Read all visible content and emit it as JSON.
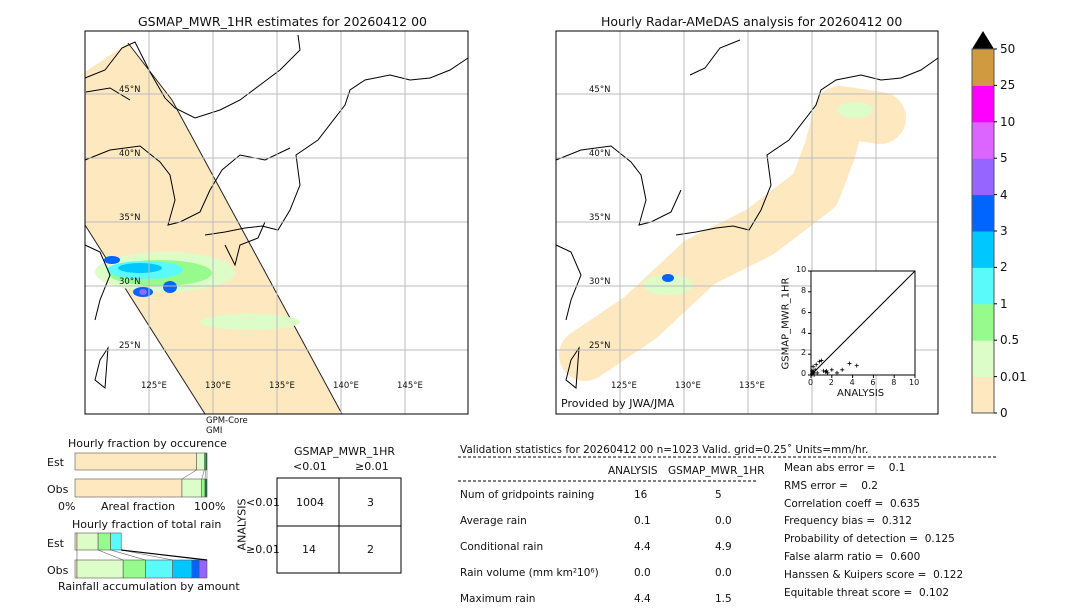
{
  "left_map": {
    "title": "GSMAP_MWR_1HR estimates for 20260412 00",
    "lat_labels": [
      "45°N",
      "40°N",
      "35°N",
      "30°N",
      "25°N"
    ],
    "lon_labels": [
      "125°E",
      "130°E",
      "135°E",
      "140°E",
      "145°E"
    ],
    "sensor_line1": "GPM-Core",
    "sensor_line2": "GMI"
  },
  "right_map": {
    "title": "Hourly Radar-AMeDAS analysis for 20260412 00",
    "lat_labels": [
      "45°N",
      "40°N",
      "35°N",
      "30°N",
      "25°N"
    ],
    "lon_labels": [
      "125°E",
      "130°E",
      "135°E"
    ],
    "credit": "Provided by JWA/JMA"
  },
  "colorbar": {
    "ticks": [
      "0",
      "0.01",
      "0.5",
      "1",
      "2",
      "3",
      "4",
      "5",
      "10",
      "25",
      "50"
    ],
    "colors": [
      "#fee8c0",
      "#dcfdc8",
      "#96fb8c",
      "#5afafa",
      "#00c8ff",
      "#0064ff",
      "#9664ff",
      "#dc64ff",
      "#ff00ff",
      "#d09a40"
    ],
    "extend_color": "#000000"
  },
  "chart_data": [
    {
      "type": "scatter",
      "xlabel": "ANALYSIS",
      "ylabel": "GSMAP_MWR_1HR",
      "xlim": [
        0,
        10
      ],
      "ylim": [
        0,
        10
      ],
      "xticks": [
        "0",
        "2",
        "4",
        "6",
        "8",
        "10"
      ],
      "yticks": [
        "0",
        "2",
        "4",
        "6",
        "8",
        "10"
      ],
      "diagonal": true,
      "points": [
        [
          0.1,
          0.1
        ],
        [
          0.2,
          0.3
        ],
        [
          0.3,
          0.2
        ],
        [
          0.4,
          0.5
        ],
        [
          0.2,
          0.8
        ],
        [
          0.5,
          1.0
        ],
        [
          0.6,
          0.2
        ],
        [
          0.8,
          1.3
        ],
        [
          1.0,
          1.4
        ],
        [
          1.2,
          0.4
        ],
        [
          1.4,
          0.3
        ],
        [
          1.5,
          0.4
        ],
        [
          1.6,
          0.2
        ],
        [
          2.0,
          0.5
        ],
        [
          2.5,
          0.2
        ],
        [
          3.0,
          0.5
        ],
        [
          3.7,
          1.1
        ],
        [
          4.4,
          0.9
        ],
        [
          0.3,
          0.0
        ],
        [
          0.1,
          0.4
        ]
      ]
    },
    {
      "type": "bar",
      "title": "Hourly fraction by occurence",
      "xlabel": "Areal fraction",
      "x_ticks": [
        "0%",
        "100%"
      ],
      "categories": [
        "Est",
        "Obs"
      ],
      "stacked_percent": {
        "Est": [
          {
            "color": "#fee8c0",
            "value": 92.0
          },
          {
            "color": "#dcfdc8",
            "value": 6.0
          },
          {
            "color": "#96fb8c",
            "value": 1.0
          },
          {
            "color": "#1a6a3a",
            "value": 1.0
          }
        ],
        "Obs": [
          {
            "color": "#fee8c0",
            "value": 81.0
          },
          {
            "color": "#dcfdc8",
            "value": 15.0
          },
          {
            "color": "#96fb8c",
            "value": 2.5
          },
          {
            "color": "#1a6a3a",
            "value": 1.5
          }
        ]
      }
    },
    {
      "type": "bar",
      "title": "Hourly fraction of total rain",
      "xlabel": "Rainfall accumulation by amount",
      "categories": [
        "Est",
        "Obs"
      ],
      "stacked_percent": {
        "Est": [
          {
            "color": "#fee8c0",
            "value": 1.5
          },
          {
            "color": "#dcfdc8",
            "value": 16.0
          },
          {
            "color": "#96fb8c",
            "value": 9.5
          },
          {
            "color": "#5afafa",
            "value": 8.0
          }
        ],
        "Obs": [
          {
            "color": "#fee8c0",
            "value": 1.5
          },
          {
            "color": "#dcfdc8",
            "value": 35.0
          },
          {
            "color": "#96fb8c",
            "value": 17.0
          },
          {
            "color": "#5afafa",
            "value": 20.5
          },
          {
            "color": "#00c8ff",
            "value": 14.5
          },
          {
            "color": "#0064ff",
            "value": 5.5
          },
          {
            "color": "#9664ff",
            "value": 6.0
          }
        ]
      }
    }
  ],
  "contingency": {
    "title": "GSMAP_MWR_1HR",
    "col_headers": [
      "<0.01",
      "≥0.01"
    ],
    "row_axis": "ANALYSIS",
    "row_headers": [
      "<0.01",
      "≥0.01"
    ],
    "cells": [
      [
        "1004",
        "3"
      ],
      [
        "14",
        "2"
      ]
    ]
  },
  "stats": {
    "header": "Validation statistics for 20260412 00  n=1023 Valid. grid=0.25˚ Units=mm/hr.",
    "col_analysis": "ANALYSIS",
    "col_gsmap": "GSMAP_MWR_1HR",
    "rows": [
      {
        "label": "Num of gridpoints raining",
        "analysis": "16",
        "gsmap": "5"
      },
      {
        "label": "Average rain",
        "analysis": "0.1",
        "gsmap": "0.0"
      },
      {
        "label": "Conditional rain",
        "analysis": "4.4",
        "gsmap": "4.9"
      },
      {
        "label": "Rain volume (mm km²10⁶)",
        "analysis": "0.0",
        "gsmap": "0.0"
      },
      {
        "label": "Maximum rain",
        "analysis": "4.4",
        "gsmap": "1.5"
      }
    ],
    "scores": [
      "Mean abs error =    0.1",
      "RMS error =    0.2",
      "Correlation coeff =  0.635",
      "Frequency bias =  0.312",
      "Probability of detection =  0.125",
      "False alarm ratio =  0.600",
      "Hanssen & Kuipers score =  0.122",
      "Equitable threat score =  0.102"
    ]
  }
}
